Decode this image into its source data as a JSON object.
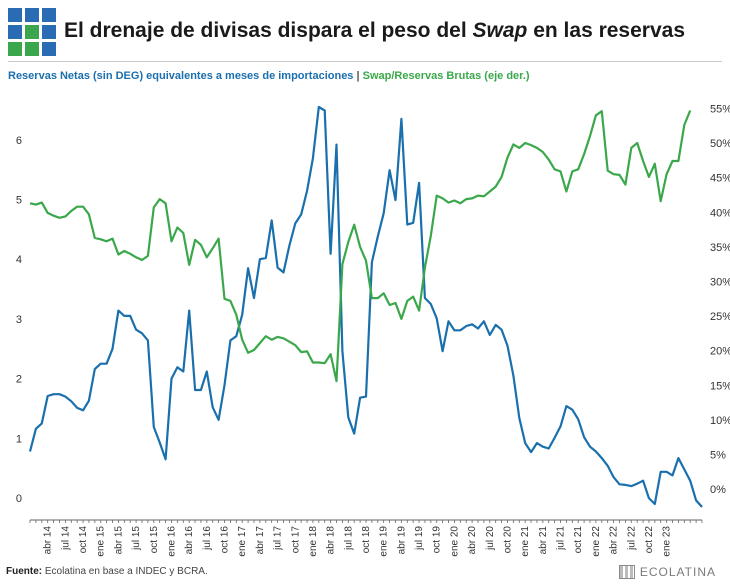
{
  "header": {
    "title_before": "El drenaje de divisas dispara el peso del ",
    "title_italic": "Swap",
    "title_after": " en las reservas",
    "subtitle_left": "Reservas Netas (sin DEG) equivalentes a meses de importaciones",
    "subtitle_sep": " | ",
    "subtitle_right": "Swap/Reservas Brutas (eje der.)"
  },
  "colors": {
    "blue": "#1a6fad",
    "green": "#3aa84a",
    "logo_blue": "#2a6cb3",
    "logo_green": "#3ba74c"
  },
  "footer": {
    "source_label": "Fuente:",
    "source_text": " Ecolatina en base a INDEC y BCRA.",
    "brand": "ECOLATINA"
  },
  "chart_data": {
    "type": "line",
    "ylim": [
      -0.2,
      6.7
    ],
    "y_ticks": [
      "0",
      "1",
      "2",
      "3",
      "4",
      "5",
      "6"
    ],
    "y2lim": [
      -3,
      56.5
    ],
    "y2_ticks": [
      "0%",
      "5%",
      "10%",
      "15%",
      "20%",
      "25%",
      "30%",
      "35%",
      "40%",
      "45%",
      "50%",
      "55%"
    ],
    "x_labels": [
      "abr 14",
      "jul 14",
      "oct 14",
      "ene 15",
      "abr 15",
      "jul 15",
      "oct 15",
      "ene 16",
      "abr 16",
      "jul 16",
      "oct 16",
      "ene 17",
      "abr 17",
      "jul 17",
      "oct 17",
      "ene 18",
      "abr 18",
      "jul 18",
      "oct 18",
      "ene 19",
      "abr 19",
      "jul 19",
      "oct 19",
      "ene 20",
      "abr 20",
      "jul 20",
      "oct 20",
      "ene 21",
      "abr 21",
      "jul 21",
      "oct 21",
      "ene 22",
      "abr 22",
      "jul 22",
      "oct 22",
      "ene 23"
    ],
    "first_month": "ene 14",
    "grid": false,
    "series": [
      {
        "name": "Reservas Netas (sin DEG) equivalentes a meses de importaciones",
        "axis": "left",
        "values": [
          0.78,
          1.16,
          1.25,
          1.71,
          1.74,
          1.74,
          1.7,
          1.62,
          1.51,
          1.47,
          1.63,
          2.16,
          2.25,
          2.25,
          2.5,
          3.14,
          3.05,
          3.05,
          2.82,
          2.76,
          2.64,
          1.19,
          0.93,
          0.65,
          2.0,
          2.19,
          2.12,
          3.14,
          1.81,
          1.81,
          2.12,
          1.52,
          1.31,
          1.89,
          2.64,
          2.71,
          3.07,
          3.85,
          3.35,
          4.0,
          4.02,
          4.65,
          3.86,
          3.78,
          4.23,
          4.6,
          4.75,
          5.15,
          5.69,
          6.55,
          6.49,
          4.09,
          5.92,
          2.46,
          1.35,
          1.08,
          1.68,
          1.7,
          3.95,
          4.38,
          4.77,
          5.49,
          4.99,
          6.35,
          4.58,
          4.61,
          5.28,
          3.35,
          3.25,
          3.01,
          2.46,
          2.96,
          2.81,
          2.81,
          2.88,
          2.91,
          2.84,
          2.96,
          2.73,
          2.9,
          2.82,
          2.55,
          2.05,
          1.34,
          0.92,
          0.77,
          0.92,
          0.86,
          0.83,
          1.01,
          1.2,
          1.54,
          1.48,
          1.32,
          1.02,
          0.86,
          0.78,
          0.67,
          0.54,
          0.35,
          0.23,
          0.22,
          0.2,
          0.24,
          0.29,
          0.0,
          -0.1,
          0.44,
          0.44,
          0.38,
          0.67,
          0.48,
          0.29,
          -0.04,
          -0.15
        ]
      },
      {
        "name": "Swap/Reservas Brutas (eje der.)",
        "axis": "right",
        "values": [
          41.3,
          41.1,
          41.4,
          39.9,
          39.5,
          39.2,
          39.4,
          40.2,
          40.8,
          40.8,
          39.7,
          36.3,
          36.1,
          35.8,
          36.2,
          33.9,
          34.4,
          34.0,
          33.5,
          33.1,
          33.7,
          40.7,
          41.9,
          41.3,
          35.8,
          37.8,
          37.0,
          32.4,
          36.0,
          35.3,
          33.5,
          34.8,
          36.2,
          27.5,
          27.2,
          25.2,
          21.6,
          19.7,
          20.1,
          21.1,
          22.1,
          21.6,
          22.0,
          21.8,
          21.3,
          20.8,
          19.8,
          19.9,
          18.3,
          18.3,
          18.2,
          19.5,
          15.6,
          32.5,
          35.7,
          38.2,
          35.0,
          33.0,
          27.6,
          27.6,
          28.3,
          26.6,
          26.9,
          24.6,
          27.2,
          27.8,
          25.8,
          32.0,
          36.6,
          42.4,
          42.0,
          41.4,
          41.7,
          41.3,
          41.9,
          42.0,
          42.4,
          42.3,
          43.0,
          43.7,
          45.1,
          47.9,
          49.8,
          49.3,
          50.0,
          49.7,
          49.3,
          48.7,
          47.6,
          46.2,
          45.9,
          43.0,
          45.9,
          46.2,
          48.4,
          51.0,
          54.0,
          54.6,
          46.0,
          45.5,
          45.4,
          44.0,
          49.3,
          50.0,
          47.4,
          45.1,
          47.0,
          41.6,
          45.5,
          47.4,
          47.4,
          52.6,
          54.7
        ]
      }
    ]
  }
}
